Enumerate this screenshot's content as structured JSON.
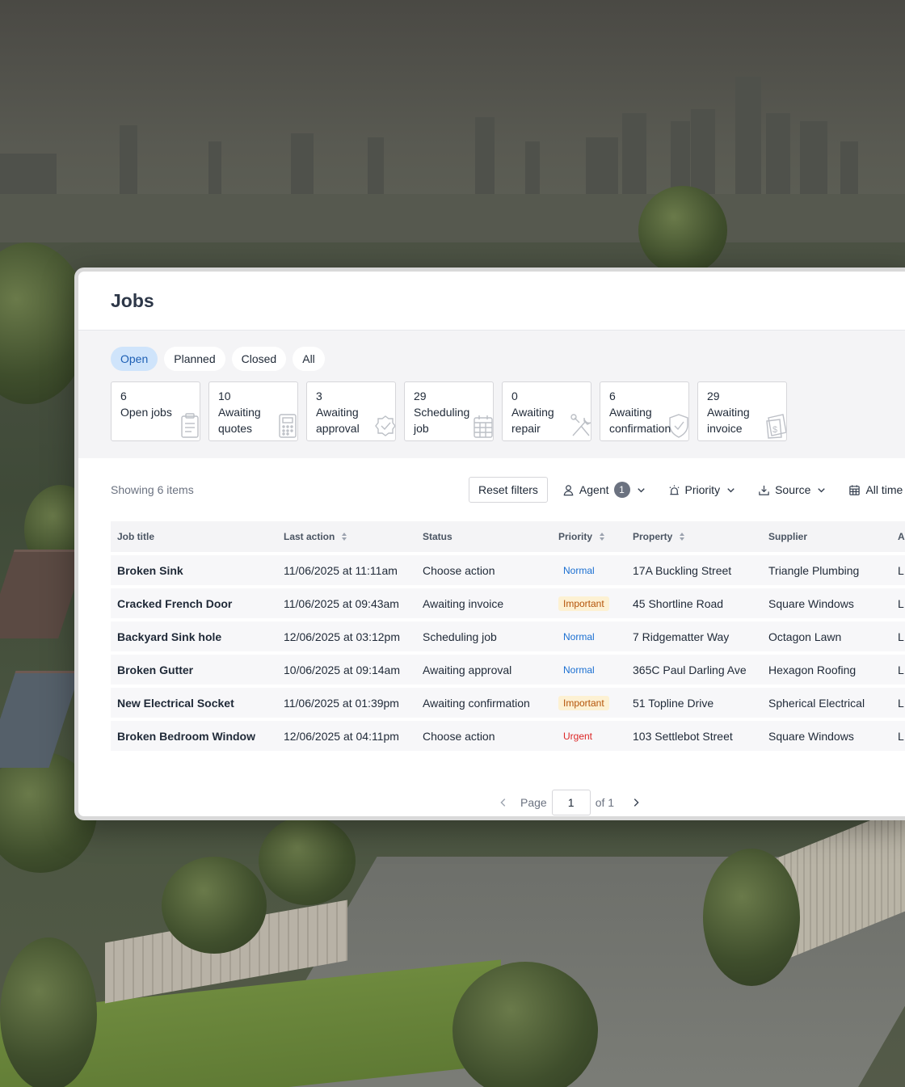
{
  "page": {
    "title": "Jobs"
  },
  "tabs": [
    {
      "label": "Open",
      "active": true
    },
    {
      "label": "Planned",
      "active": false
    },
    {
      "label": "Closed",
      "active": false
    },
    {
      "label": "All",
      "active": false
    }
  ],
  "stats": [
    {
      "count": "6",
      "label": "Open jobs",
      "icon": "clipboard-icon"
    },
    {
      "count": "10",
      "label": "Awaiting quotes",
      "icon": "calculator-icon"
    },
    {
      "count": "3",
      "label": "Awaiting approval",
      "icon": "badge-check-icon"
    },
    {
      "count": "29",
      "label": "Scheduling job",
      "icon": "calendar-icon"
    },
    {
      "count": "0",
      "label": "Awaiting repair",
      "icon": "tools-icon"
    },
    {
      "count": "6",
      "label": "Awaiting confirmation",
      "icon": "shield-check-icon"
    },
    {
      "count": "29",
      "label": "Awaiting invoice",
      "icon": "dollar-document-icon"
    }
  ],
  "toolbar": {
    "showing": "Showing 6 items",
    "reset": "Reset filters",
    "agent": "Agent",
    "agent_badge": "1",
    "priority": "Priority",
    "source": "Source",
    "time": "All time"
  },
  "table": {
    "headers": [
      "Job title",
      "Last action",
      "Status",
      "Priority",
      "Property",
      "Supplier",
      "A"
    ],
    "rows": [
      {
        "title": "Broken Sink",
        "last_action": "11/06/2025 at 11:11am",
        "status": "Choose action",
        "priority": "Normal",
        "property": "17A Buckling Street",
        "supplier": "Triangle Plumbing",
        "extra": "L"
      },
      {
        "title": "Cracked French Door",
        "last_action": "11/06/2025 at 09:43am",
        "status": "Awaiting invoice",
        "priority": "Important",
        "property": "45 Shortline Road",
        "supplier": "Square Windows",
        "extra": "L"
      },
      {
        "title": "Backyard Sink hole",
        "last_action": "12/06/2025 at 03:12pm",
        "status": "Scheduling job",
        "priority": "Normal",
        "property": "7 Ridgematter Way",
        "supplier": "Octagon Lawn",
        "extra": "L"
      },
      {
        "title": "Broken Gutter",
        "last_action": "10/06/2025 at 09:14am",
        "status": "Awaiting approval",
        "priority": "Normal",
        "property": "365C Paul Darling Ave",
        "supplier": "Hexagon Roofing",
        "extra": "L"
      },
      {
        "title": "New Electrical Socket",
        "last_action": "11/06/2025 at 01:39pm",
        "status": "Awaiting confirmation",
        "priority": "Important",
        "property": "51 Topline Drive",
        "supplier": "Spherical Electrical",
        "extra": "L"
      },
      {
        "title": "Broken Bedroom Window",
        "last_action": "12/06/2025 at 04:11pm",
        "status": "Choose action",
        "priority": "Urgent",
        "property": "103 Settlebot Street",
        "supplier": "Square Windows",
        "extra": "L"
      }
    ]
  },
  "pagination": {
    "label": "Page",
    "current": "1",
    "of": "of 1"
  },
  "colors": {
    "accent": "#1d5fb4",
    "active_tab_bg": "#cfe4fb",
    "priority_normal": "#1a6fd1",
    "priority_important": "#b45309",
    "priority_urgent": "#dc2626"
  }
}
